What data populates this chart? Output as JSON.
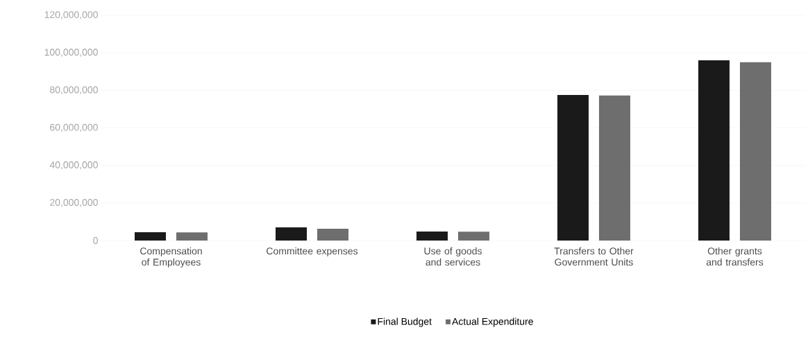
{
  "chart_data": {
    "type": "bar",
    "categories": [
      "Compensation of Employees",
      "Committee expenses",
      "Use of goods and services",
      "Transfers to Other Government Units",
      "Other grants and transfers"
    ],
    "series": [
      {
        "name": "Final Budget",
        "color": "#1a1a1a",
        "values": [
          4400000,
          7000000,
          4800000,
          77500000,
          96000000
        ]
      },
      {
        "name": "Actual Expenditure",
        "color": "#6e6e6e",
        "values": [
          4300000,
          6300000,
          4700000,
          77300000,
          95000000
        ]
      }
    ],
    "ylim": [
      0,
      120000000
    ],
    "yticks": [
      {
        "value": 0,
        "label": "0"
      },
      {
        "value": 20000000,
        "label": "20,000,000"
      },
      {
        "value": 40000000,
        "label": "40,000,000"
      },
      {
        "value": 60000000,
        "label": "60,000,000"
      },
      {
        "value": 80000000,
        "label": "80,000,000"
      },
      {
        "value": 100000000,
        "label": "100,000,000"
      },
      {
        "value": 120000000,
        "label": "120,000,000"
      }
    ],
    "grid": "y",
    "legend": "bottom"
  }
}
